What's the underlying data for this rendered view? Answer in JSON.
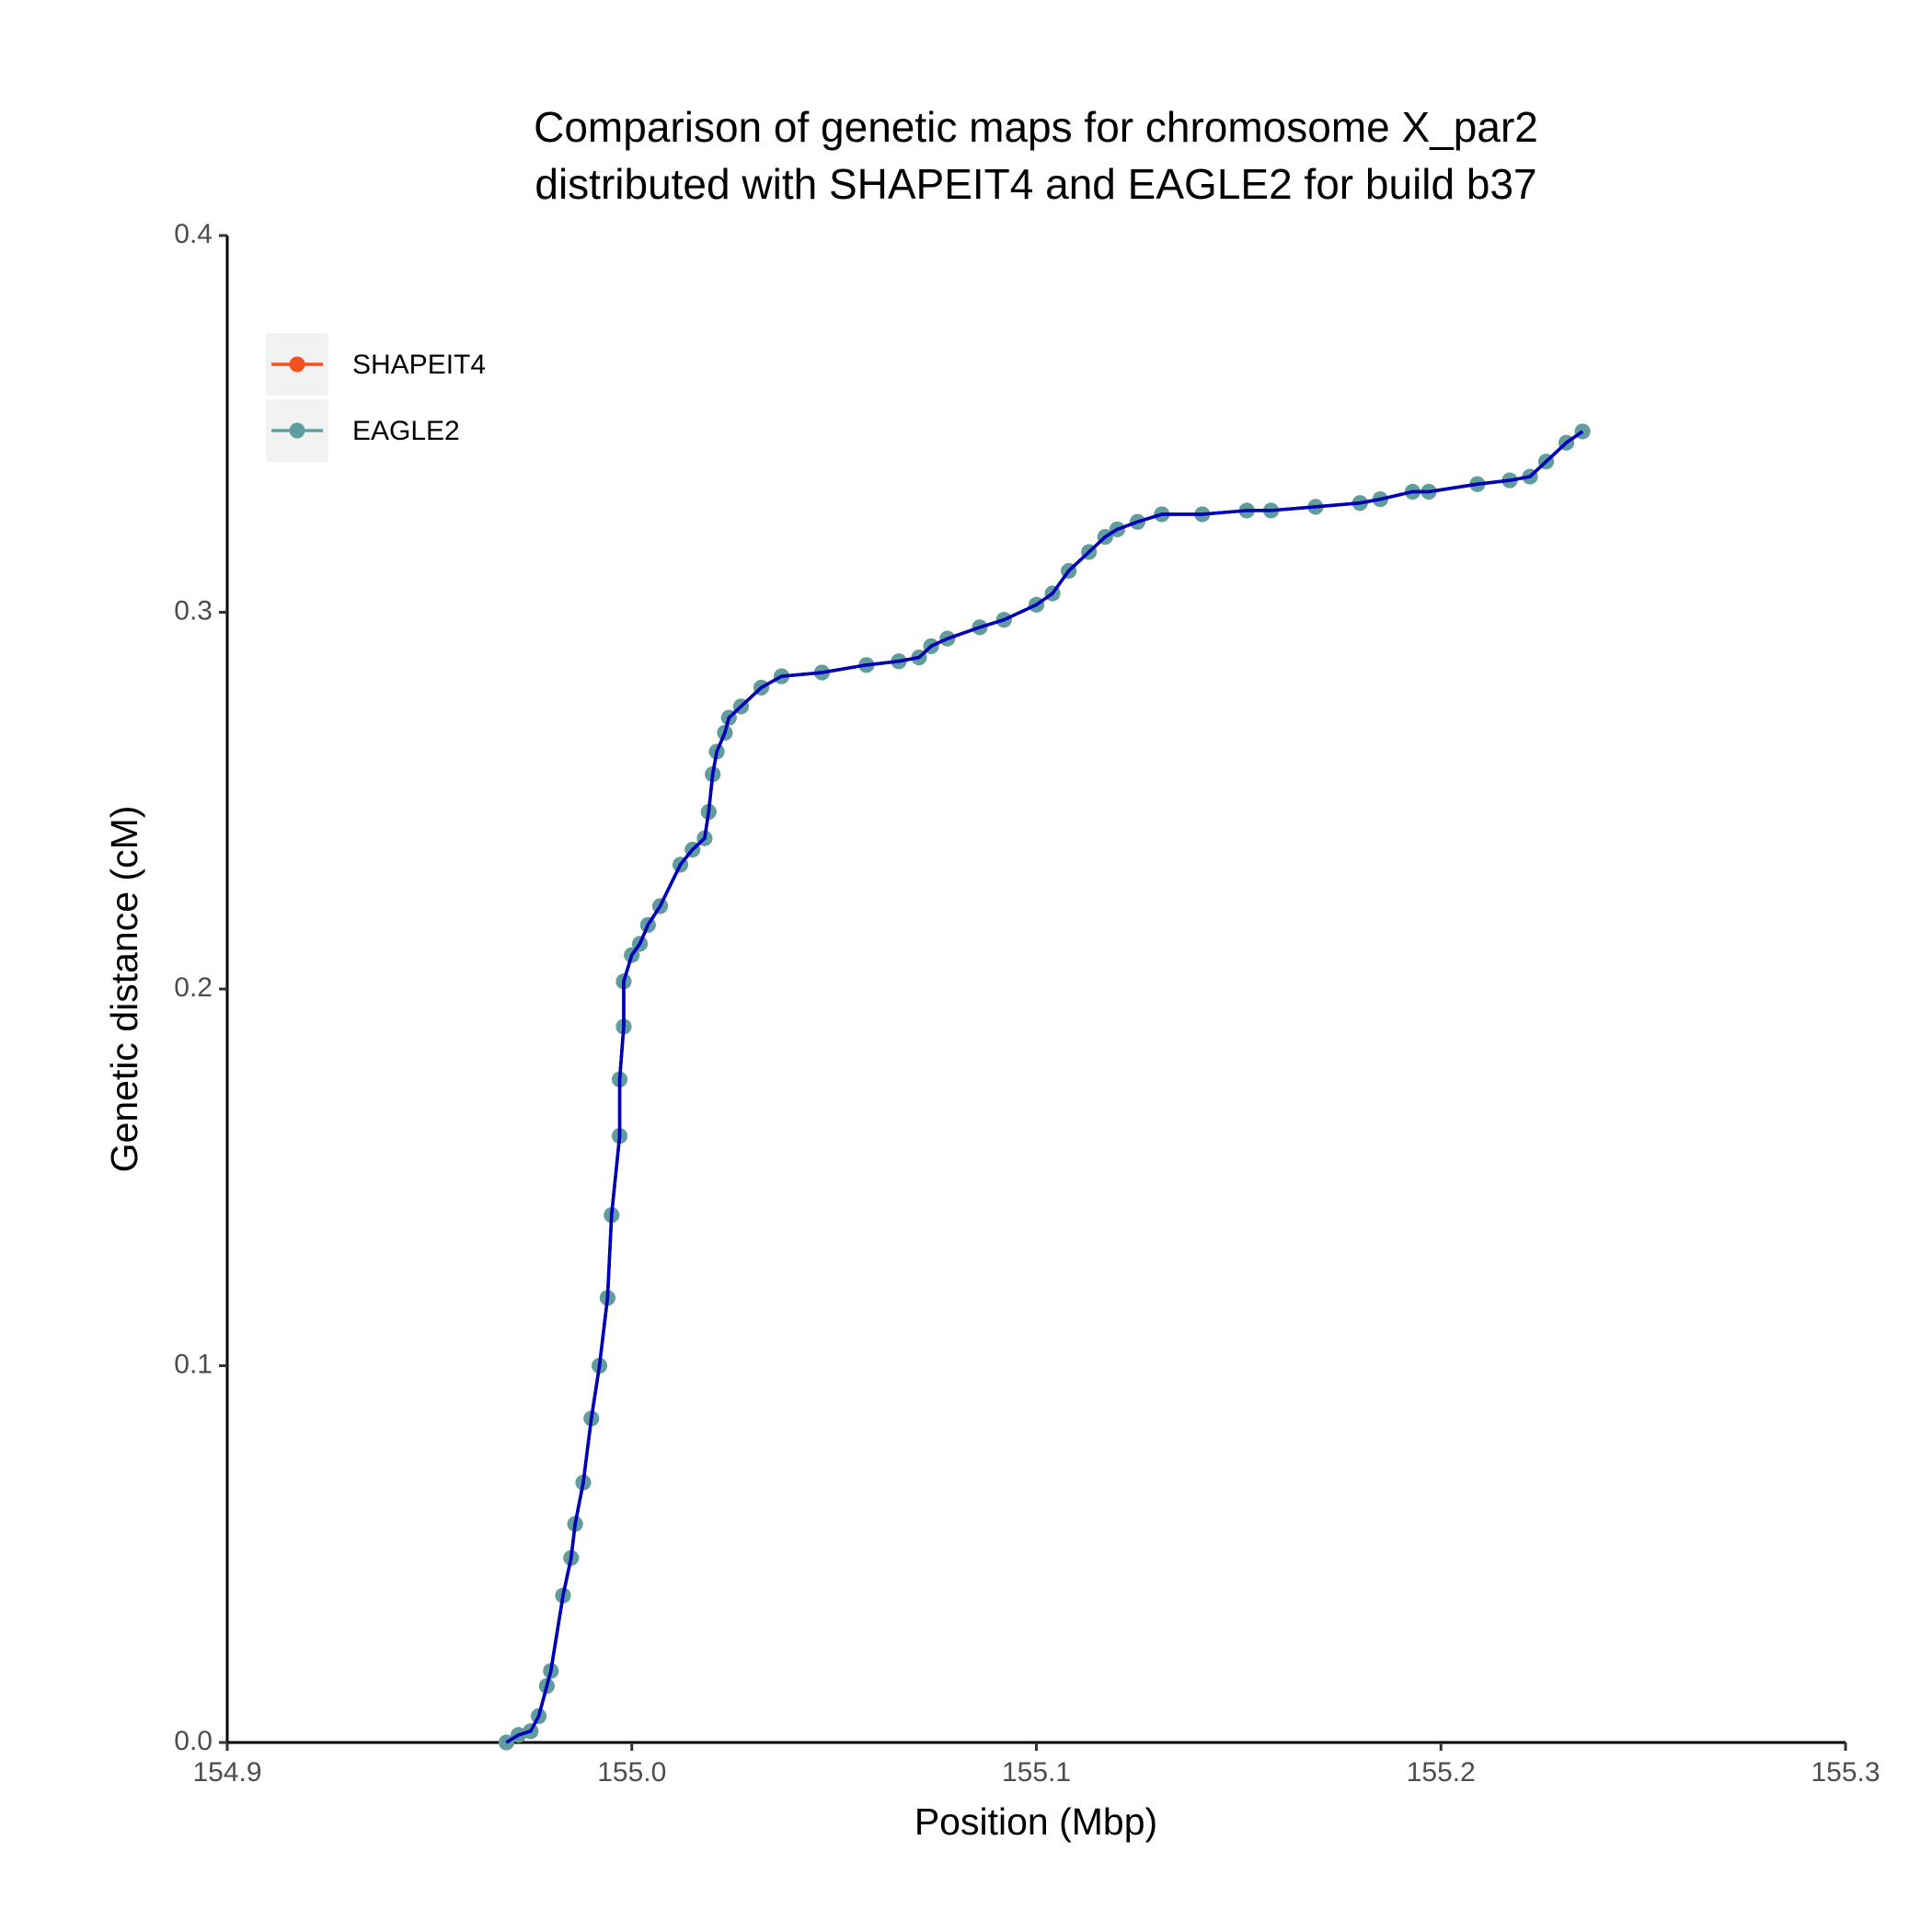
{
  "chart_data": {
    "type": "line",
    "title": [
      "Comparison of genetic maps for chromosome X_par2",
      "distributed with SHAPEIT4 and EAGLE2 for build b37"
    ],
    "x_label": "Position (Mbp)",
    "y_label": "Genetic distance (cM)",
    "x": [
      154.969,
      154.972,
      154.975,
      154.977,
      154.979,
      154.98,
      154.983,
      154.985,
      154.986,
      154.988,
      154.99,
      154.992,
      154.994,
      154.995,
      154.997,
      154.997,
      154.998,
      154.998,
      155.0,
      155.002,
      155.004,
      155.007,
      155.012,
      155.015,
      155.018,
      155.019,
      155.02,
      155.021,
      155.023,
      155.024,
      155.027,
      155.032,
      155.037,
      155.047,
      155.058,
      155.066,
      155.071,
      155.074,
      155.078,
      155.086,
      155.092,
      155.1,
      155.104,
      155.108,
      155.113,
      155.117,
      155.12,
      155.125,
      155.131,
      155.141,
      155.152,
      155.158,
      155.169,
      155.18,
      155.185,
      155.193,
      155.197,
      155.209,
      155.217,
      155.222,
      155.226,
      155.231,
      155.235
    ],
    "series": [
      {
        "name": "SHAPEIT4",
        "color": "#f4511e",
        "values": [
          0.0,
          0.002,
          0.003,
          0.007,
          0.015,
          0.019,
          0.039,
          0.049,
          0.058,
          0.069,
          0.086,
          0.1,
          0.118,
          0.14,
          0.161,
          0.176,
          0.19,
          0.202,
          0.209,
          0.212,
          0.217,
          0.222,
          0.233,
          0.237,
          0.24,
          0.247,
          0.257,
          0.263,
          0.268,
          0.272,
          0.275,
          0.28,
          0.283,
          0.284,
          0.286,
          0.287,
          0.288,
          0.291,
          0.293,
          0.296,
          0.298,
          0.302,
          0.305,
          0.311,
          0.316,
          0.32,
          0.322,
          0.324,
          0.326,
          0.326,
          0.327,
          0.327,
          0.328,
          0.329,
          0.33,
          0.332,
          0.332,
          0.334,
          0.335,
          0.336,
          0.34,
          0.345,
          0.348
        ]
      },
      {
        "name": "EAGLE2",
        "color": "#5f9ea0",
        "values": [
          0.0,
          0.002,
          0.003,
          0.007,
          0.015,
          0.019,
          0.039,
          0.049,
          0.058,
          0.069,
          0.086,
          0.1,
          0.118,
          0.14,
          0.161,
          0.176,
          0.19,
          0.202,
          0.209,
          0.212,
          0.217,
          0.222,
          0.233,
          0.237,
          0.24,
          0.247,
          0.257,
          0.263,
          0.268,
          0.272,
          0.275,
          0.28,
          0.283,
          0.284,
          0.286,
          0.287,
          0.288,
          0.291,
          0.293,
          0.296,
          0.298,
          0.302,
          0.305,
          0.311,
          0.316,
          0.32,
          0.322,
          0.324,
          0.326,
          0.326,
          0.327,
          0.327,
          0.328,
          0.329,
          0.33,
          0.332,
          0.332,
          0.334,
          0.335,
          0.336,
          0.34,
          0.345,
          0.348
        ]
      }
    ],
    "line_color": "#0000b4",
    "xlim": [
      154.9,
      155.3
    ],
    "xticks": [
      154.9,
      {
        "value": 155.0,
        "label": "155.0"
      },
      155.1,
      155.2,
      155.3
    ],
    "ylim": [
      0,
      0.4
    ],
    "yticks": [
      {
        "value": 0,
        "label": "0.0"
      },
      0.1,
      0.2,
      0.3,
      0.4
    ],
    "grid": false,
    "legend": "top-left"
  }
}
